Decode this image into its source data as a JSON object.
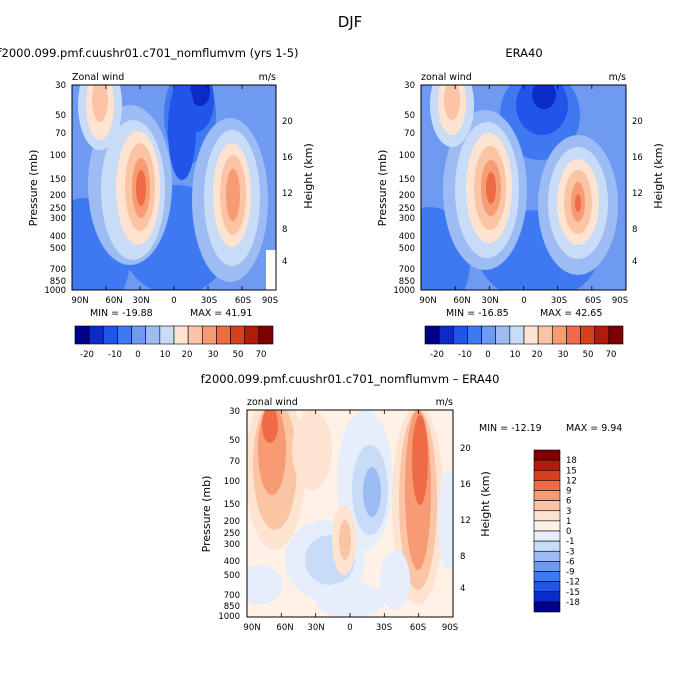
{
  "figure": {
    "suptitle": "DJF"
  },
  "chart_data": [
    {
      "type": "contour",
      "title": "f2000.099.pmf.cuushr01.c701_nomflumvm (yrs 1-5)",
      "left_label": "Zonal wind",
      "right_label": "m/s",
      "ylabel": "Pressure (mb)",
      "y2label": "Height (km)",
      "xticks": [
        "90N",
        "60N",
        "30N",
        "0",
        "30S",
        "60S",
        "90S"
      ],
      "yticks": [
        "30",
        "50",
        "70",
        "100",
        "150",
        "200",
        "250",
        "300",
        "400",
        "500",
        "700",
        "850",
        "1000"
      ],
      "y2ticks": [
        "20",
        "16",
        "12",
        "8",
        "4"
      ],
      "min_label": "MIN = -19.88",
      "max_label": "MAX = 41.91",
      "colorbar_levels": [
        "-20",
        "-10",
        "0",
        "10",
        "20",
        "30",
        "50",
        "70"
      ],
      "colorbar_colors": [
        "#00008c",
        "#0a2bc7",
        "#2154e8",
        "#3f79f2",
        "#6f9af2",
        "#9dbcf4",
        "#c9dcf7",
        "#fde3d0",
        "#fac4a5",
        "#f79b74",
        "#ee6b45",
        "#d8401d",
        "#b11b0b",
        "#7e0000"
      ],
      "features": [
        {
          "name": "westerly-jet-north",
          "lat": 28,
          "pressure": 200,
          "value": 41.91
        },
        {
          "name": "westerly-jet-south",
          "lat": -55,
          "pressure": 200,
          "value": 30
        },
        {
          "name": "easterlies-tropical",
          "lat": -5,
          "pressure": 30,
          "value": -19.88
        },
        {
          "name": "high-lat-westerlies-north",
          "lat": 65,
          "pressure": 50,
          "value": 20
        }
      ]
    },
    {
      "type": "contour",
      "title": "ERA40",
      "left_label": "zonal wind",
      "right_label": "m/s",
      "ylabel": "Pressure (mb)",
      "y2label": "Height (km)",
      "xticks": [
        "90N",
        "60N",
        "30N",
        "0",
        "30S",
        "60S",
        "90S"
      ],
      "yticks": [
        "30",
        "50",
        "70",
        "100",
        "150",
        "200",
        "250",
        "300",
        "400",
        "500",
        "700",
        "850",
        "1000"
      ],
      "y2ticks": [
        "20",
        "16",
        "12",
        "8",
        "4"
      ],
      "min_label": "MIN = -16.85",
      "max_label": "MAX = 42.65",
      "colorbar_levels": [
        "-20",
        "-10",
        "0",
        "10",
        "20",
        "30",
        "50",
        "70"
      ],
      "colorbar_colors": [
        "#00008c",
        "#0a2bc7",
        "#2154e8",
        "#3f79f2",
        "#6f9af2",
        "#9dbcf4",
        "#c9dcf7",
        "#fde3d0",
        "#fac4a5",
        "#f79b74",
        "#ee6b45",
        "#d8401d",
        "#b11b0b",
        "#7e0000"
      ],
      "features": [
        {
          "name": "westerly-jet-north",
          "lat": 30,
          "pressure": 200,
          "value": 42.65
        },
        {
          "name": "westerly-jet-south",
          "lat": -48,
          "pressure": 250,
          "value": 30
        },
        {
          "name": "easterlies-tropical",
          "lat": -5,
          "pressure": 30,
          "value": -16.85
        }
      ]
    },
    {
      "type": "contour",
      "title": "f2000.099.pmf.cuushr01.c701_nomflumvm – ERA40",
      "left_label": "zonal wind",
      "right_label": "m/s",
      "ylabel": "Pressure (mb)",
      "y2label": "Height (km)",
      "xticks": [
        "90N",
        "60N",
        "30N",
        "0",
        "30S",
        "60S",
        "90S"
      ],
      "yticks": [
        "30",
        "50",
        "70",
        "100",
        "150",
        "200",
        "250",
        "300",
        "400",
        "500",
        "700",
        "850",
        "1000"
      ],
      "y2ticks": [
        "20",
        "16",
        "12",
        "8",
        "4"
      ],
      "min_label": "MIN = -12.19",
      "max_label": "MAX =    9.94",
      "colorbar_levels": [
        "18",
        "15",
        "12",
        "9",
        "6",
        "3",
        "1",
        "0",
        "-1",
        "-3",
        "-6",
        "-9",
        "-12",
        "-15",
        "-18"
      ],
      "colorbar_colors": [
        "#7e0000",
        "#b11b0b",
        "#d8401d",
        "#ee6b45",
        "#f79b74",
        "#fac4a5",
        "#fde3d0",
        "#fff1e6",
        "#e6eefb",
        "#c9dcf7",
        "#9dbcf4",
        "#6f9af2",
        "#3f79f2",
        "#2154e8",
        "#0a2bc7",
        "#00008c"
      ],
      "features": [
        {
          "name": "positive-bias-south-high-lat",
          "lat": -60,
          "pressure": 100,
          "value": 9.94
        },
        {
          "name": "positive-bias-north-high-lat",
          "lat": 70,
          "pressure": 50,
          "value": 6
        },
        {
          "name": "negative-bias-tropical",
          "lat": 8,
          "pressure": 120,
          "value": -12.19
        }
      ]
    }
  ]
}
